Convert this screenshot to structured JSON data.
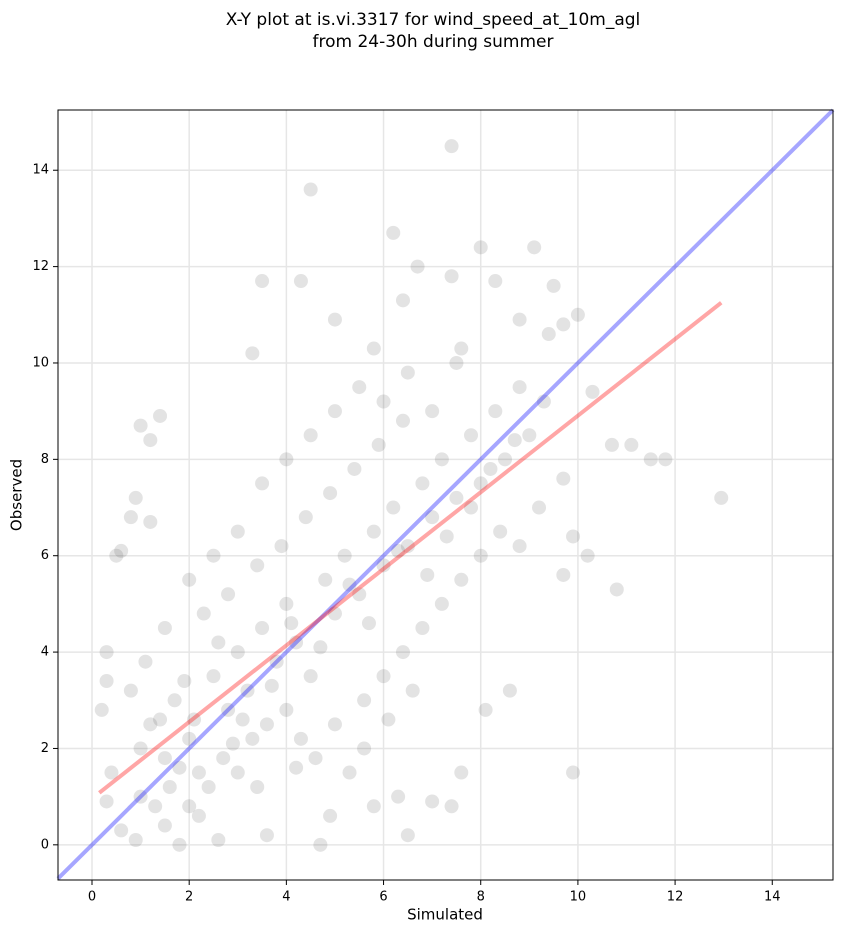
{
  "chart_data": {
    "type": "scatter",
    "title": [
      "X-Y plot at is.vi.3317 for wind_speed_at_10m_agl",
      "from 24-30h during summer"
    ],
    "x_label": "Simulated",
    "y_label": "Observed",
    "xlim": [
      -0.7,
      15.25
    ],
    "ylim": [
      -0.73,
      15.25
    ],
    "xticks": [
      0,
      2,
      4,
      6,
      8,
      10,
      12,
      14
    ],
    "yticks": [
      0,
      2,
      4,
      6,
      8,
      10,
      12,
      14
    ],
    "grid": true,
    "scatter": {
      "color": "#404040",
      "x": [
        7.4,
        4.5,
        6.2,
        8,
        9.1,
        6.7,
        7.4,
        3.5,
        4.3,
        8.3,
        9.5,
        10,
        6.4,
        9.7,
        5,
        3.3,
        5.8,
        7.6,
        8.8,
        9.4,
        10.3,
        10.7,
        11.1,
        11.5,
        11.8,
        12.95,
        10.2,
        9.9,
        10.8,
        9.7,
        9.9,
        8.6,
        8.1,
        7.6,
        7.4,
        7,
        5.8,
        4.7,
        1,
        1.4,
        1.2,
        0.9,
        1.2,
        0.8,
        0.6,
        0.5,
        0.3,
        0.2,
        0.3,
        0.4,
        0.3,
        6.5,
        6.3,
        3.6,
        2.6,
        1.8,
        0.9,
        1.5,
        2.2,
        0.6,
        1,
        1.2,
        1.5,
        1.7,
        2,
        2.2,
        2.5,
        2.8,
        3,
        3.2,
        3.5,
        3.8,
        4,
        4.2,
        4.5,
        4.8,
        5,
        5.2,
        5.5,
        5.8,
        6,
        6.2,
        6.5,
        6.8,
        7,
        7.2,
        7.5,
        7.8,
        8,
        8.3,
        8.5,
        8.8,
        9,
        1,
        1.3,
        1.6,
        2,
        2.4,
        2.7,
        3,
        3.3,
        3.6,
        4,
        4.3,
        4.6,
        5,
        5.3,
        5.6,
        6,
        6.4,
        6.8,
        7.2,
        7.6,
        8,
        8.4,
        8.8,
        9.2,
        1.5,
        2,
        2.5,
        3,
        3.5,
        4,
        4.5,
        5,
        5.5,
        6,
        6.5,
        7,
        7.5,
        2.3,
        2.8,
        3.4,
        3.9,
        4.4,
        4.9,
        5.4,
        5.9,
        6.4,
        0.8,
        1.1,
        1.4,
        1.9,
        2.6,
        3.1,
        3.7,
        4.1,
        4.7,
        5.3,
        5.7,
        6.3,
        6.9,
        7.3,
        7.8,
        8.2,
        8.7,
        9.3,
        9.7,
        1.8,
        2.1,
        2.9,
        3.4,
        4.2,
        4.9,
        5.6,
        6.1,
        6.6
      ],
      "y": [
        14.5,
        13.6,
        12.7,
        12.4,
        12.4,
        12,
        11.8,
        11.7,
        11.7,
        11.7,
        11.6,
        11,
        11.3,
        10.8,
        10.9,
        10.2,
        10.3,
        10.3,
        10.9,
        10.6,
        9.4,
        8.3,
        8.3,
        8,
        8,
        7.2,
        6,
        6.4,
        5.3,
        5.6,
        1.5,
        3.2,
        2.8,
        1.5,
        0.8,
        0.9,
        0.8,
        0,
        8.7,
        8.9,
        8.4,
        7.2,
        6.7,
        6.8,
        6.1,
        6,
        4,
        2.8,
        3.4,
        1.5,
        0.9,
        0.2,
        1,
        0.2,
        0.1,
        0,
        0.1,
        0.4,
        0.6,
        0.3,
        2,
        2.5,
        1.8,
        3,
        2.2,
        1.5,
        3.5,
        2.8,
        4,
        3.2,
        4.5,
        3.8,
        5,
        4.2,
        3.5,
        5.5,
        4.8,
        6,
        5.2,
        6.5,
        5.8,
        7,
        6.2,
        7.5,
        6.8,
        8,
        7.2,
        8.5,
        7.5,
        9,
        8,
        9.5,
        8.5,
        1,
        0.8,
        1.2,
        0.8,
        1.2,
        1.8,
        1.5,
        2.2,
        2.5,
        2.8,
        2.2,
        1.8,
        2.5,
        1.5,
        3,
        3.5,
        4,
        4.5,
        5,
        5.5,
        6,
        6.5,
        6.2,
        7,
        4.5,
        5.5,
        6,
        6.5,
        7.5,
        8,
        8.5,
        9,
        9.5,
        9.2,
        9.8,
        9,
        10,
        4.8,
        5.2,
        5.8,
        6.2,
        6.8,
        7.3,
        7.8,
        8.3,
        8.8,
        3.2,
        3.8,
        2.6,
        3.4,
        4.2,
        2.6,
        3.3,
        4.6,
        4.1,
        5.4,
        4.6,
        6.1,
        5.6,
        6.4,
        7,
        7.8,
        8.4,
        9.2,
        7.6,
        1.6,
        2.6,
        2.1,
        1.2,
        1.6,
        0.6,
        2,
        2.6,
        3.2
      ]
    },
    "lines": [
      {
        "color": "#0000ff",
        "x": [
          -0.7,
          15.25
        ],
        "y": [
          -0.7,
          15.25
        ]
      },
      {
        "color": "#ff0000",
        "x": [
          0.15,
          12.95
        ],
        "y": [
          1.08,
          11.25
        ]
      }
    ]
  }
}
